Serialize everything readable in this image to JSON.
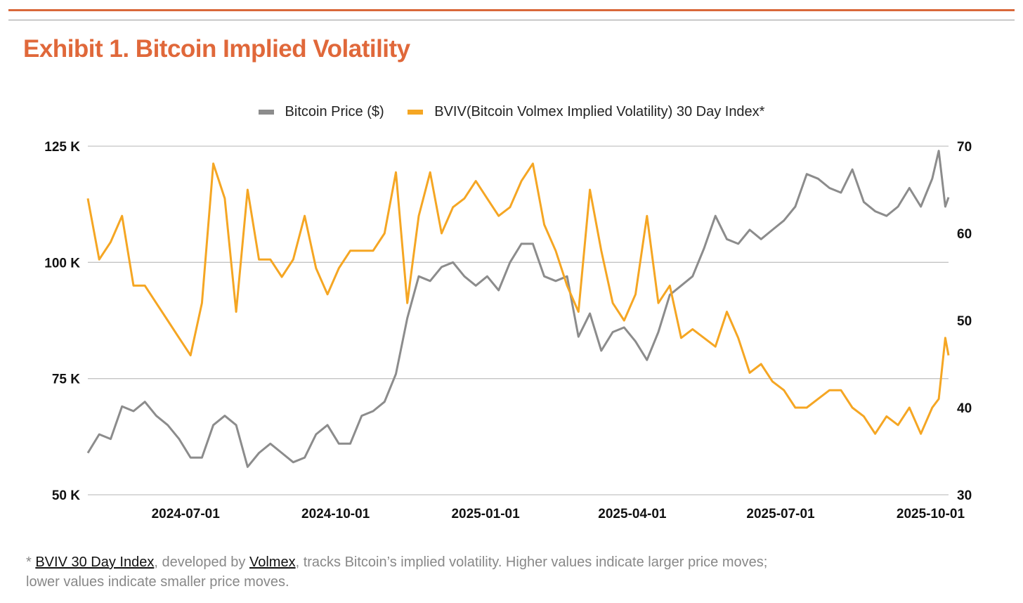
{
  "title": "Exhibit 1. Bitcoin Implied Volatility",
  "footnote": {
    "prefix": "* ",
    "link1": "BVIV 30 Day Index",
    "mid": ", developed by ",
    "link2": "Volmex",
    "suffix": ", tracks Bitcoin’s implied volatility. Higher values indicate larger price moves;",
    "line2": "lower values indicate smaller price moves."
  },
  "chart_data": {
    "type": "line",
    "title": "Exhibit 1. Bitcoin Implied Volatility",
    "legend_position": "top",
    "grid": true,
    "x": [
      "2024-05-02",
      "2024-05-09",
      "2024-05-16",
      "2024-05-23",
      "2024-05-30",
      "2024-06-06",
      "2024-06-13",
      "2024-06-20",
      "2024-06-27",
      "2024-07-04",
      "2024-07-11",
      "2024-07-18",
      "2024-07-25",
      "2024-08-01",
      "2024-08-08",
      "2024-08-15",
      "2024-08-22",
      "2024-08-29",
      "2024-09-05",
      "2024-09-12",
      "2024-09-19",
      "2024-09-26",
      "2024-10-03",
      "2024-10-10",
      "2024-10-17",
      "2024-10-24",
      "2024-10-31",
      "2024-11-07",
      "2024-11-14",
      "2024-11-21",
      "2024-11-28",
      "2024-12-05",
      "2024-12-12",
      "2024-12-19",
      "2024-12-26",
      "2025-01-02",
      "2025-01-09",
      "2025-01-16",
      "2025-01-23",
      "2025-01-30",
      "2025-02-06",
      "2025-02-13",
      "2025-02-20",
      "2025-02-27",
      "2025-03-06",
      "2025-03-13",
      "2025-03-20",
      "2025-03-27",
      "2025-04-03",
      "2025-04-10",
      "2025-04-17",
      "2025-04-24",
      "2025-05-01",
      "2025-05-08",
      "2025-05-15",
      "2025-05-22",
      "2025-05-29",
      "2025-06-05",
      "2025-06-12",
      "2025-06-19",
      "2025-06-26",
      "2025-07-03",
      "2025-07-10",
      "2025-07-17",
      "2025-07-24",
      "2025-07-31",
      "2025-08-07",
      "2025-08-14",
      "2025-08-21",
      "2025-08-28",
      "2025-09-04",
      "2025-09-11",
      "2025-09-18",
      "2025-09-25",
      "2025-10-02",
      "2025-10-06",
      "2025-10-10",
      "2025-10-12"
    ],
    "x_range": [
      "2024-05-02",
      "2025-10-12"
    ],
    "x_ticks": [
      "2024-07-01",
      "2024-10-01",
      "2025-01-01",
      "2025-04-01",
      "2025-07-01",
      "2025-10-01"
    ],
    "y_left": {
      "ticks": [
        "50 K",
        "75 K",
        "100 K",
        "125 K"
      ],
      "tick_values": [
        50,
        75,
        100,
        125
      ],
      "range": [
        50,
        125
      ],
      "unit": "K $"
    },
    "y_right": {
      "ticks": [
        "30",
        "40",
        "50",
        "60",
        "70"
      ],
      "tick_values": [
        30,
        40,
        50,
        60,
        70
      ],
      "range": [
        30,
        70
      ]
    },
    "series": [
      {
        "name": "Bitcoin Price ($)",
        "axis": "left",
        "color": "#8C8C8C",
        "values": [
          59,
          63,
          62,
          69,
          68,
          70,
          67,
          65,
          62,
          58,
          58,
          65,
          67,
          65,
          56,
          59,
          61,
          59,
          57,
          58,
          63,
          65,
          61,
          61,
          67,
          68,
          70,
          76,
          88,
          97,
          96,
          99,
          100,
          97,
          95,
          97,
          94,
          100,
          104,
          104,
          97,
          96,
          97,
          84,
          89,
          81,
          85,
          86,
          83,
          79,
          85,
          93,
          95,
          97,
          103,
          110,
          105,
          104,
          107,
          105,
          107,
          109,
          112,
          119,
          118,
          116,
          115,
          120,
          113,
          111,
          110,
          112,
          116,
          112,
          118,
          124,
          112,
          114
        ]
      },
      {
        "name": "BVIV(Bitcoin Volmex Implied Volatility) 30 Day Index*",
        "axis": "right",
        "color": "#F5A623",
        "values": [
          64,
          57,
          59,
          62,
          54,
          54,
          52,
          50,
          48,
          46,
          52,
          68,
          64,
          51,
          65,
          57,
          57,
          55,
          57,
          62,
          56,
          53,
          56,
          58,
          58,
          58,
          60,
          67,
          52,
          62,
          67,
          60,
          63,
          64,
          66,
          64,
          62,
          63,
          66,
          68,
          61,
          58,
          54,
          51,
          65,
          58,
          52,
          50,
          53,
          62,
          52,
          54,
          48,
          49,
          48,
          47,
          51,
          48,
          44,
          45,
          43,
          42,
          40,
          40,
          41,
          42,
          42,
          40,
          39,
          37,
          39,
          38,
          40,
          37,
          40,
          41,
          48,
          46
        ]
      }
    ]
  }
}
